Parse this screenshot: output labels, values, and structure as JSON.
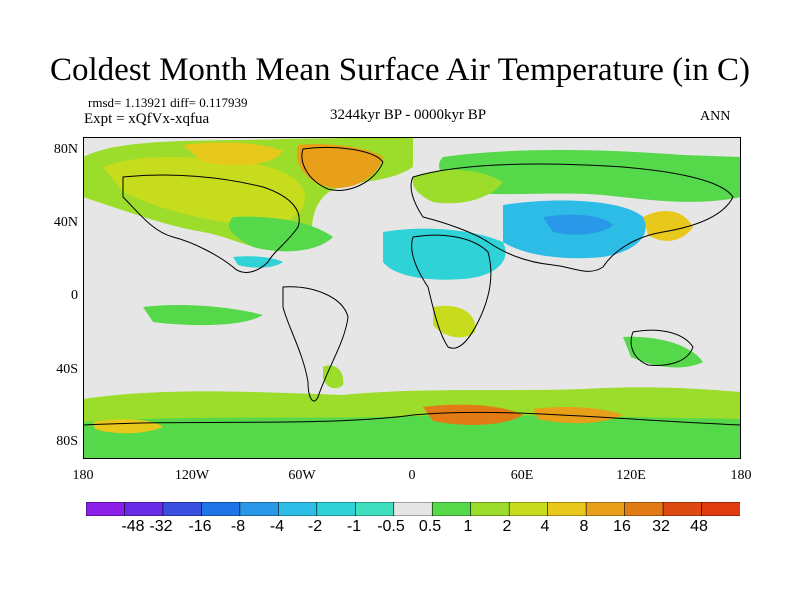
{
  "title": "Coldest Month Mean Surface Air Temperature (in C)",
  "stats": "rmsd= 1.13921 diff= 0.117939",
  "experiment": "Expt = xQfVx-xqfua",
  "period": "3244kyr BP - 0000kyr BP",
  "season": "ANN",
  "lat_labels": [
    "80N",
    "40N",
    "0",
    "40S",
    "80S"
  ],
  "lon_labels": [
    "180",
    "120W",
    "60W",
    "0",
    "60E",
    "120E",
    "180"
  ],
  "colorbar": {
    "labels": [
      "-48",
      "-32",
      "-16",
      "-8",
      "-4",
      "-2",
      "-1",
      "-0.5",
      "0.5",
      "1",
      "2",
      "4",
      "8",
      "16",
      "32",
      "48"
    ],
    "colors": [
      "#8a1fe8",
      "#6a2be6",
      "#3a4fe0",
      "#1f74e6",
      "#2a98e8",
      "#2cbce6",
      "#2fd2d6",
      "#3ee0c0",
      "#e6e6e6",
      "#55d84a",
      "#9cdc2a",
      "#c8dc1e",
      "#e8c81a",
      "#e8a01a",
      "#e27a16",
      "#dd4a12",
      "#e03a10"
    ]
  }
}
